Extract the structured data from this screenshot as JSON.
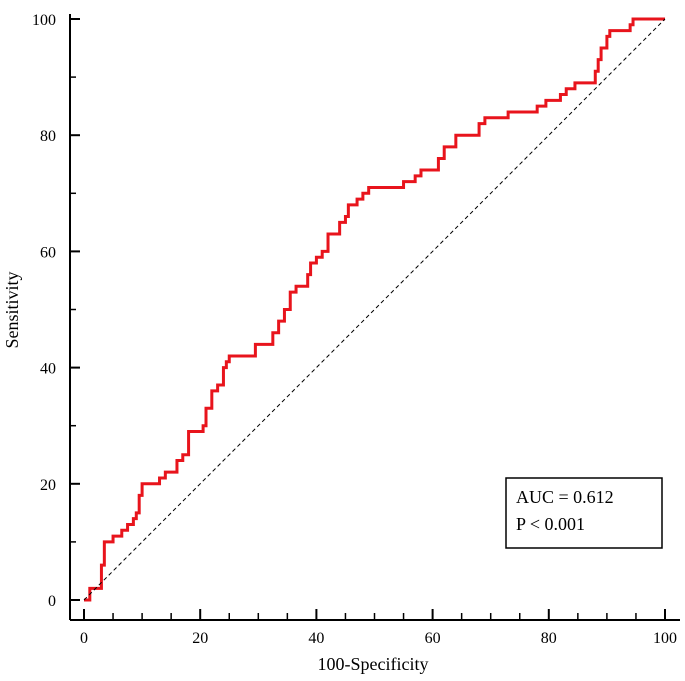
{
  "chart_data": {
    "type": "line",
    "title": "",
    "xlabel": "100-Specificity",
    "ylabel": "Sensitivity",
    "xlim": [
      0,
      100
    ],
    "ylim": [
      0,
      100
    ],
    "x_ticks": [
      "0",
      "20",
      "40",
      "60",
      "80",
      "100"
    ],
    "y_ticks": [
      "0",
      "20",
      "40",
      "60",
      "80",
      "100"
    ],
    "grid": false,
    "series": [
      {
        "name": "",
        "color": "#e8141c",
        "style": "step",
        "points": [
          [
            0,
            0
          ],
          [
            1,
            2
          ],
          [
            3,
            2
          ],
          [
            3,
            6
          ],
          [
            3.5,
            10
          ],
          [
            4.5,
            10
          ],
          [
            5,
            11
          ],
          [
            6,
            11
          ],
          [
            6.5,
            12
          ],
          [
            7.5,
            13
          ],
          [
            8.5,
            14
          ],
          [
            9,
            15
          ],
          [
            9.5,
            18
          ],
          [
            10,
            20
          ],
          [
            12,
            20
          ],
          [
            13,
            21
          ],
          [
            14,
            22
          ],
          [
            15.5,
            22
          ],
          [
            16,
            24
          ],
          [
            17,
            25
          ],
          [
            18,
            29
          ],
          [
            20,
            29
          ],
          [
            20.5,
            30
          ],
          [
            21,
            33
          ],
          [
            22,
            36
          ],
          [
            23,
            37
          ],
          [
            24,
            40
          ],
          [
            24.5,
            41
          ],
          [
            25,
            42
          ],
          [
            29,
            42
          ],
          [
            29.5,
            44
          ],
          [
            32,
            44
          ],
          [
            32.5,
            46
          ],
          [
            33.5,
            48
          ],
          [
            34.5,
            50
          ],
          [
            35.5,
            53
          ],
          [
            36.5,
            54
          ],
          [
            38,
            54
          ],
          [
            38.5,
            56
          ],
          [
            39,
            58
          ],
          [
            40,
            59
          ],
          [
            41,
            60
          ],
          [
            42,
            63
          ],
          [
            43.5,
            63
          ],
          [
            44,
            65
          ],
          [
            45,
            66
          ],
          [
            45.5,
            68
          ],
          [
            47,
            69
          ],
          [
            48,
            70
          ],
          [
            49,
            71
          ],
          [
            54,
            71
          ],
          [
            55,
            72
          ],
          [
            57,
            73
          ],
          [
            58,
            74
          ],
          [
            60,
            74
          ],
          [
            61,
            76
          ],
          [
            62,
            78
          ],
          [
            63,
            78
          ],
          [
            64,
            80
          ],
          [
            67,
            80
          ],
          [
            68,
            82
          ],
          [
            69,
            83
          ],
          [
            72,
            83
          ],
          [
            73,
            84
          ],
          [
            77,
            84
          ],
          [
            78,
            85
          ],
          [
            79.5,
            86
          ],
          [
            81,
            86
          ],
          [
            82,
            87
          ],
          [
            83,
            88
          ],
          [
            84.5,
            89
          ],
          [
            87,
            89
          ],
          [
            88,
            91
          ],
          [
            88.5,
            93
          ],
          [
            89,
            95
          ],
          [
            90,
            97
          ],
          [
            90.5,
            98
          ],
          [
            93,
            98
          ],
          [
            94,
            99
          ],
          [
            94.5,
            100
          ],
          [
            100,
            100
          ]
        ]
      },
      {
        "name": "",
        "color": "#000000",
        "style": "dashed",
        "points": [
          [
            0,
            0
          ],
          [
            100,
            100
          ]
        ]
      }
    ],
    "annotation": {
      "line1": "AUC = 0.612",
      "line2": "P < 0.001"
    }
  }
}
